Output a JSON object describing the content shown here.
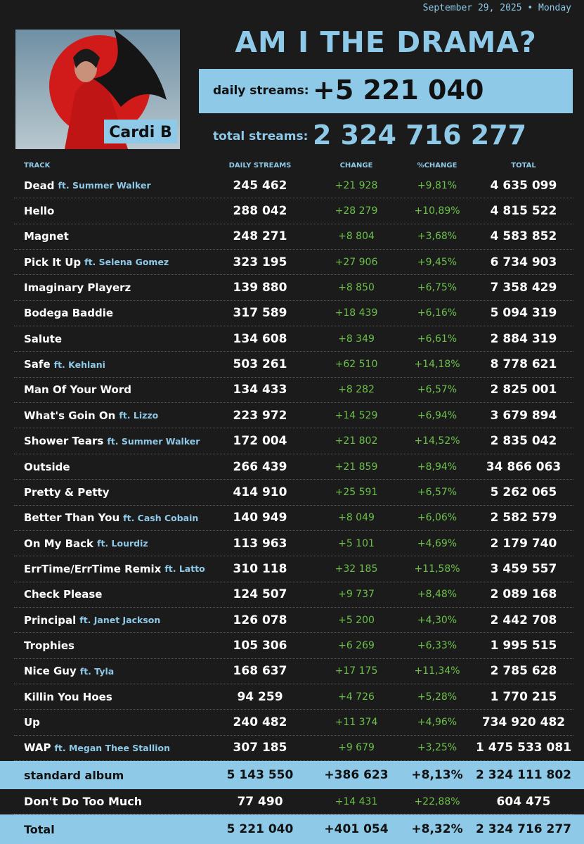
{
  "header": {
    "date": "September 29, 2025 • Monday",
    "title": "AM I THE DRAMA?",
    "artist": "Cardi B",
    "daily_label": "daily streams:",
    "daily_value": "+5 221 040",
    "total_label": "total streams:",
    "total_value": "2 324 716 277"
  },
  "table": {
    "columns": [
      "TRACK",
      "DAILY STREAMS",
      "CHANGE",
      "%CHANGE",
      "TOTAL"
    ],
    "rows": [
      {
        "track": "Dead",
        "feat": "ft.  Summer Walker",
        "daily": "245 462",
        "change": "+21 928",
        "pct": "+9,81%",
        "total": "4 635 099"
      },
      {
        "track": "Hello",
        "daily": "288 042",
        "change": "+28 279",
        "pct": "+10,89%",
        "total": "4 815 522"
      },
      {
        "track": "Magnet",
        "daily": "248 271",
        "change": "+8 804",
        "pct": "+3,68%",
        "total": "4 583 852"
      },
      {
        "track": "Pick It Up",
        "feat": "ft. Selena Gomez",
        "daily": "323 195",
        "change": "+27 906",
        "pct": "+9,45%",
        "total": "6 734 903"
      },
      {
        "track": "Imaginary Playerz",
        "daily": "139 880",
        "change": "+8 850",
        "pct": "+6,75%",
        "total": "7 358 429"
      },
      {
        "track": "Bodega Baddie",
        "daily": "317 589",
        "change": "+18 439",
        "pct": "+6,16%",
        "total": "5 094 319"
      },
      {
        "track": "Salute",
        "daily": "134 608",
        "change": "+8 349",
        "pct": "+6,61%",
        "total": "2 884 319"
      },
      {
        "track": "Safe",
        "feat": "ft. Kehlani",
        "daily": "503 261",
        "change": "+62 510",
        "pct": "+14,18%",
        "total": "8 778 621"
      },
      {
        "track": "Man Of Your Word",
        "daily": "134 433",
        "change": "+8 282",
        "pct": "+6,57%",
        "total": "2 825 001"
      },
      {
        "track": "What's Goin On",
        "feat": "ft. Lizzo",
        "daily": "223 972",
        "change": "+14 529",
        "pct": "+6,94%",
        "total": "3 679 894"
      },
      {
        "track": "Shower Tears",
        "feat": "ft.  Summer Walker",
        "daily": "172 004",
        "change": "+21 802",
        "pct": "+14,52%",
        "total": "2 835 042"
      },
      {
        "track": "Outside",
        "daily": "266 439",
        "change": "+21 859",
        "pct": "+8,94%",
        "total": "34 866 063"
      },
      {
        "track": "Pretty & Petty",
        "daily": "414 910",
        "change": "+25 591",
        "pct": "+6,57%",
        "total": "5 262 065"
      },
      {
        "track": "Better Than You",
        "feat": "ft. Cash Cobain",
        "daily": "140 949",
        "change": "+8 049",
        "pct": "+6,06%",
        "total": "2 582 579"
      },
      {
        "track": "On My Back",
        "feat": "ft. Lourdiz",
        "daily": "113 963",
        "change": "+5 101",
        "pct": "+4,69%",
        "total": "2 179 740"
      },
      {
        "track": "ErrTime/ErrTime Remix",
        "feat": "ft. Latto",
        "daily": "310 118",
        "change": "+32 185",
        "pct": "+11,58%",
        "total": "3 459 557"
      },
      {
        "track": "Check Please",
        "daily": "124 507",
        "change": "+9 737",
        "pct": "+8,48%",
        "total": "2 089 168"
      },
      {
        "track": "Principal",
        "feat": "ft. Janet Jackson",
        "daily": "126 078",
        "change": "+5 200",
        "pct": "+4,30%",
        "total": "2 442 708"
      },
      {
        "track": "Trophies",
        "daily": "105 306",
        "change": "+6 269",
        "pct": "+6,33%",
        "total": "1 995 515"
      },
      {
        "track": "Nice Guy",
        "feat": "ft. Tyla",
        "daily": "168 637",
        "change": "+17 175",
        "pct": "+11,34%",
        "total": "2 785 628"
      },
      {
        "track": "Killin You Hoes",
        "daily": "94 259",
        "change": "+4 726",
        "pct": "+5,28%",
        "total": "1 770 215"
      },
      {
        "track": "Up",
        "daily": "240 482",
        "change": "+11 374",
        "pct": "+4,96%",
        "total": "734 920 482"
      },
      {
        "track": "WAP",
        "feat": "ft. Megan Thee Stallion",
        "daily": "307 185",
        "change": "+9 679",
        "pct": "+3,25%",
        "total": "1 475 533 081"
      }
    ],
    "summary": [
      {
        "track": "standard album",
        "daily": "5 143 550",
        "change": "+386 623",
        "pct": "+8,13%",
        "total": "2 324 111 802"
      },
      {
        "track": "Don't Do Too Much",
        "daily": "77 490",
        "change": "+14 431",
        "pct": "+22,88%",
        "total": "604 475"
      },
      {
        "track": "Total",
        "daily": "5 221 040",
        "change": "+401 054",
        "pct": "+8,32%",
        "total": "2 324 716 277"
      }
    ]
  }
}
